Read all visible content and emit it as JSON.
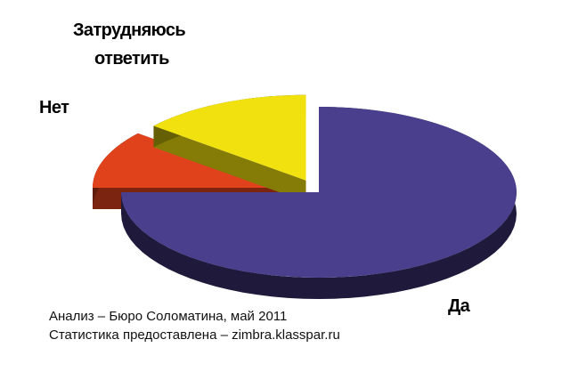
{
  "chart_data": {
    "type": "pie",
    "style": "3d-exploded",
    "title": "",
    "slices": [
      {
        "label": "Да",
        "value": 75,
        "color": "#4a3f8c"
      },
      {
        "label": "Нет",
        "value": 11,
        "color": "#e0421c"
      },
      {
        "label": "Затрудняюсь ответить",
        "value": 14,
        "color": "#f1e10e"
      }
    ],
    "label_lines": {
      "unsure": [
        "Затрудняюсь",
        "ответить"
      ]
    },
    "legend": "none"
  },
  "captions": {
    "line1": "Анализ – Бюро Соломатина, май 2011",
    "line2": "Статистика предоставлена  – zimbra.klasspar.ru"
  }
}
